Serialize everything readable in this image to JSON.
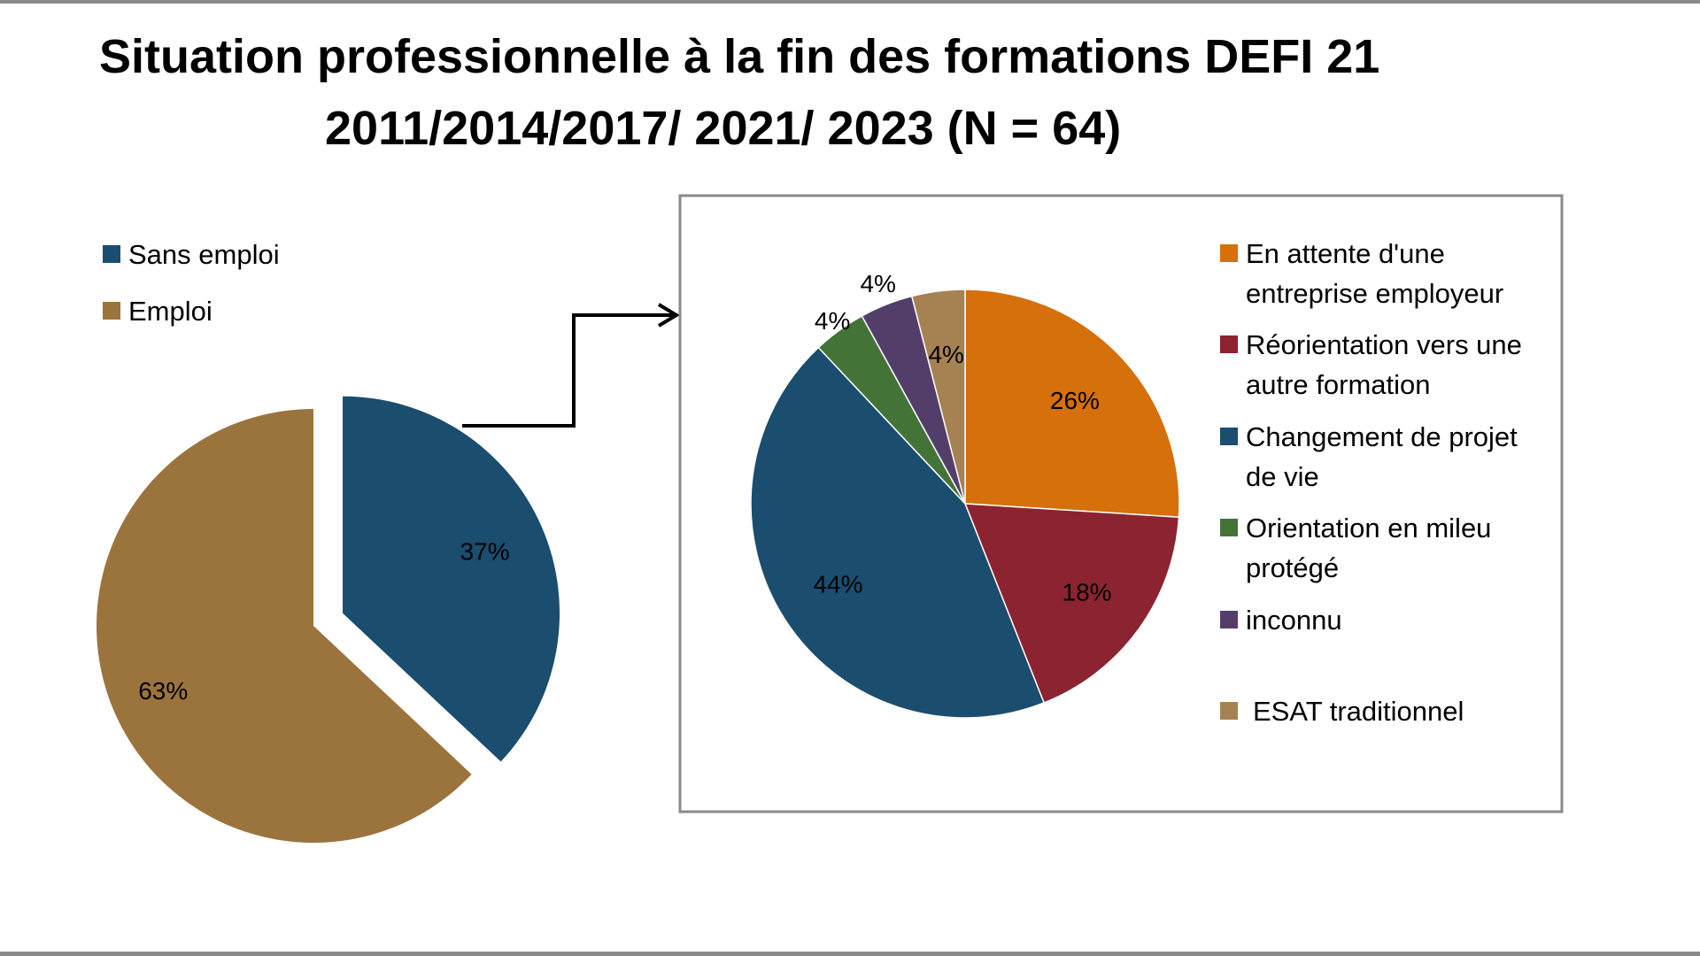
{
  "title": {
    "line1": "Situation professionnelle à la fin des formations DEFI 21",
    "line2": "2011/2014/2017/ 2021/ 2023 (N = 64)"
  },
  "chart_data": [
    {
      "type": "pie",
      "categories": [
        "Sans emploi",
        "Emploi"
      ],
      "values": [
        37,
        63
      ],
      "value_labels": [
        "37%",
        "63%"
      ],
      "colors": [
        "#1a4d6e",
        "#9b743d"
      ],
      "exploded": "Sans emploi",
      "legend": "top-left"
    },
    {
      "type": "pie",
      "categories": [
        "En attente d'une entreprise employeur",
        "Réorientation vers une autre formation",
        "Changement de projet de vie",
        "Orientation en mileu protégé",
        "inconnu",
        "ESAT traditionnel"
      ],
      "values": [
        26,
        18,
        44,
        4,
        4,
        4
      ],
      "value_labels": [
        "26%",
        "18%",
        "44%",
        "4%",
        "4%",
        "4%"
      ],
      "colors": [
        "#d5700a",
        "#8b2331",
        "#1a4d6e",
        "#447338",
        "#533e69",
        "#a68152"
      ],
      "legend": "right",
      "breakdown_of": "Sans emploi"
    }
  ]
}
